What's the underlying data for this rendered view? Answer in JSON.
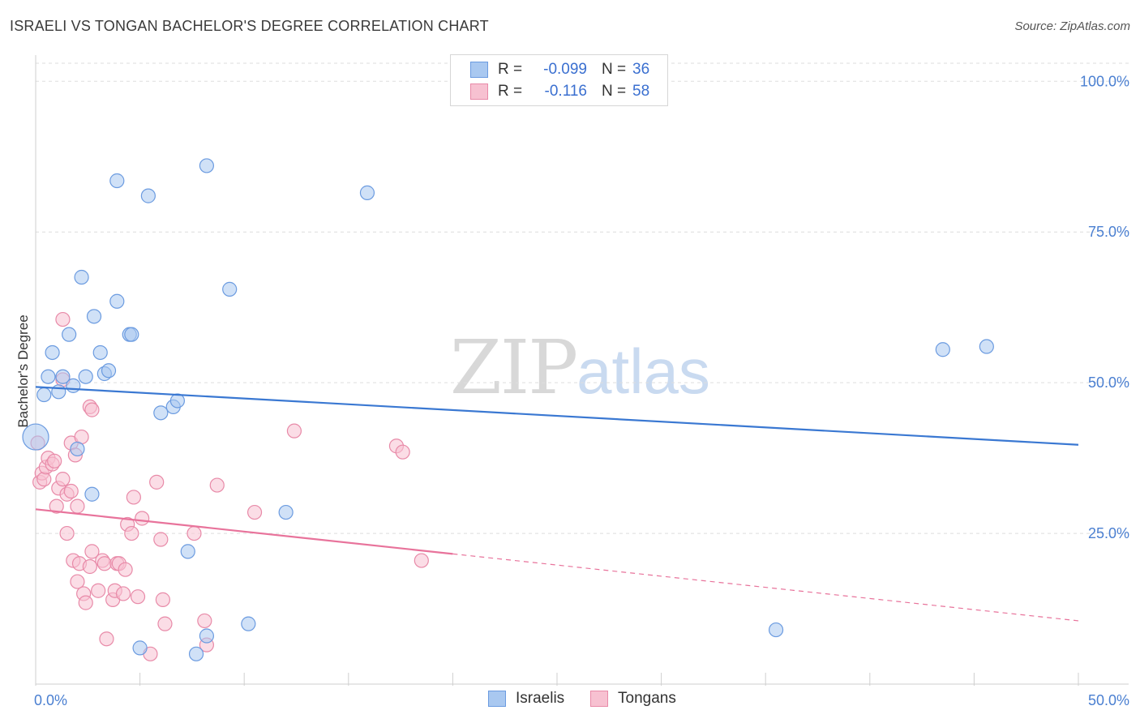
{
  "header": {
    "title": "ISRAELI VS TONGAN BACHELOR'S DEGREE CORRELATION CHART",
    "source": "Source: ZipAtlas.com"
  },
  "watermark": {
    "zip": "ZIP",
    "atlas": "atlas"
  },
  "legend_top": {
    "rows": [
      {
        "r_label": "R =",
        "r_value": "-0.099",
        "n_label": "N =",
        "n_value": "36",
        "color": "#a9c8f0",
        "border": "#6b9be0"
      },
      {
        "r_label": "R =",
        "r_value": "-0.116",
        "n_label": "N =",
        "n_value": "58",
        "color": "#f7c1d1",
        "border": "#e88aa8"
      }
    ]
  },
  "legend_bottom": {
    "israelis": "Israelis",
    "tongans": "Tongans"
  },
  "colors": {
    "israelis_fill": "#a9c8f0",
    "israelis_stroke": "#6b9be0",
    "israelis_line": "#3a78d2",
    "tongans_fill": "#f7c1d1",
    "tongans_stroke": "#e88aa8",
    "tongans_line": "#e8739b",
    "tick_text": "#4a7fd1",
    "grid": "#dedede"
  },
  "chart_data": {
    "type": "scatter",
    "title": "ISRAELI VS TONGAN BACHELOR'S DEGREE CORRELATION CHART",
    "xlabel": "",
    "ylabel": "Bachelor's Degree",
    "xlim": [
      0,
      50
    ],
    "ylim": [
      0,
      103
    ],
    "x_tick_labels": [
      "0.0%",
      "50.0%"
    ],
    "y_ticks": [
      25,
      50,
      75,
      100
    ],
    "y_tick_labels": [
      "25.0%",
      "50.0%",
      "75.0%",
      "100.0%"
    ],
    "grid": true,
    "legend_position": "top-center",
    "series": [
      {
        "name": "Israelis",
        "r": -0.099,
        "n": 36,
        "trend": {
          "x": [
            0,
            50
          ],
          "y": [
            49.3,
            39.7
          ],
          "dashed_from_x": null
        },
        "points": [
          {
            "x": 0.0,
            "y": 41.0,
            "size": "large"
          },
          {
            "x": 0.4,
            "y": 48.0
          },
          {
            "x": 0.6,
            "y": 51.0
          },
          {
            "x": 0.8,
            "y": 55.0
          },
          {
            "x": 1.1,
            "y": 48.5
          },
          {
            "x": 1.3,
            "y": 51.0
          },
          {
            "x": 1.6,
            "y": 58.0
          },
          {
            "x": 1.8,
            "y": 49.5
          },
          {
            "x": 2.0,
            "y": 39.0
          },
          {
            "x": 2.2,
            "y": 67.5
          },
          {
            "x": 2.4,
            "y": 51.0
          },
          {
            "x": 2.7,
            "y": 31.5
          },
          {
            "x": 2.8,
            "y": 61.0
          },
          {
            "x": 3.1,
            "y": 55.0
          },
          {
            "x": 3.3,
            "y": 51.5
          },
          {
            "x": 3.5,
            "y": 52.0
          },
          {
            "x": 3.9,
            "y": 83.5
          },
          {
            "x": 3.9,
            "y": 63.5
          },
          {
            "x": 4.5,
            "y": 58.0
          },
          {
            "x": 4.6,
            "y": 58.0
          },
          {
            "x": 5.4,
            "y": 81.0
          },
          {
            "x": 6.0,
            "y": 45.0
          },
          {
            "x": 6.6,
            "y": 46.0
          },
          {
            "x": 6.8,
            "y": 47.0
          },
          {
            "x": 7.3,
            "y": 22.0
          },
          {
            "x": 8.2,
            "y": 86.0
          },
          {
            "x": 9.3,
            "y": 65.5
          },
          {
            "x": 10.2,
            "y": 10.0
          },
          {
            "x": 12.0,
            "y": 28.5
          },
          {
            "x": 15.9,
            "y": 81.5
          },
          {
            "x": 5.0,
            "y": 6.0
          },
          {
            "x": 7.7,
            "y": 5.0
          },
          {
            "x": 8.2,
            "y": 8.0
          },
          {
            "x": 35.5,
            "y": 9.0
          },
          {
            "x": 43.5,
            "y": 55.5
          },
          {
            "x": 45.6,
            "y": 56.0
          }
        ]
      },
      {
        "name": "Tongans",
        "r": -0.116,
        "n": 58,
        "trend": {
          "x": [
            0,
            50
          ],
          "y": [
            29.0,
            10.5
          ],
          "dashed_from_x": 20
        },
        "points": [
          {
            "x": 0.1,
            "y": 40.0
          },
          {
            "x": 0.2,
            "y": 33.5
          },
          {
            "x": 0.3,
            "y": 35.0
          },
          {
            "x": 0.4,
            "y": 34.0
          },
          {
            "x": 0.5,
            "y": 36.0
          },
          {
            "x": 0.6,
            "y": 37.5
          },
          {
            "x": 0.8,
            "y": 36.5
          },
          {
            "x": 0.9,
            "y": 37.0
          },
          {
            "x": 1.0,
            "y": 29.5
          },
          {
            "x": 1.1,
            "y": 32.5
          },
          {
            "x": 1.3,
            "y": 34.0
          },
          {
            "x": 1.3,
            "y": 50.5
          },
          {
            "x": 1.3,
            "y": 60.5
          },
          {
            "x": 1.5,
            "y": 31.5
          },
          {
            "x": 1.5,
            "y": 25.0
          },
          {
            "x": 1.7,
            "y": 32.0
          },
          {
            "x": 1.7,
            "y": 40.0
          },
          {
            "x": 1.8,
            "y": 20.5
          },
          {
            "x": 1.9,
            "y": 38.0
          },
          {
            "x": 2.0,
            "y": 29.5
          },
          {
            "x": 2.0,
            "y": 17.0
          },
          {
            "x": 2.1,
            "y": 20.0
          },
          {
            "x": 2.2,
            "y": 41.0
          },
          {
            "x": 2.3,
            "y": 15.0
          },
          {
            "x": 2.4,
            "y": 13.5
          },
          {
            "x": 2.6,
            "y": 19.5
          },
          {
            "x": 2.6,
            "y": 46.0
          },
          {
            "x": 2.7,
            "y": 45.5
          },
          {
            "x": 2.7,
            "y": 22.0
          },
          {
            "x": 3.0,
            "y": 15.5
          },
          {
            "x": 3.2,
            "y": 20.5
          },
          {
            "x": 3.3,
            "y": 20.0
          },
          {
            "x": 3.4,
            "y": 7.5
          },
          {
            "x": 3.7,
            "y": 14.0
          },
          {
            "x": 3.8,
            "y": 15.5
          },
          {
            "x": 3.9,
            "y": 20.0
          },
          {
            "x": 4.0,
            "y": 20.0
          },
          {
            "x": 4.2,
            "y": 15.0
          },
          {
            "x": 4.3,
            "y": 19.0
          },
          {
            "x": 4.4,
            "y": 26.5
          },
          {
            "x": 4.6,
            "y": 25.0
          },
          {
            "x": 4.7,
            "y": 31.0
          },
          {
            "x": 4.9,
            "y": 14.5
          },
          {
            "x": 5.1,
            "y": 27.5
          },
          {
            "x": 5.5,
            "y": 5.0
          },
          {
            "x": 5.8,
            "y": 33.5
          },
          {
            "x": 6.0,
            "y": 24.0
          },
          {
            "x": 6.1,
            "y": 14.0
          },
          {
            "x": 6.2,
            "y": 10.0
          },
          {
            "x": 7.6,
            "y": 25.0
          },
          {
            "x": 8.1,
            "y": 10.5
          },
          {
            "x": 8.2,
            "y": 6.5
          },
          {
            "x": 8.7,
            "y": 33.0
          },
          {
            "x": 10.5,
            "y": 28.5
          },
          {
            "x": 12.4,
            "y": 42.0
          },
          {
            "x": 17.3,
            "y": 39.5
          },
          {
            "x": 17.6,
            "y": 38.5
          },
          {
            "x": 18.5,
            "y": 20.5
          }
        ]
      }
    ]
  }
}
